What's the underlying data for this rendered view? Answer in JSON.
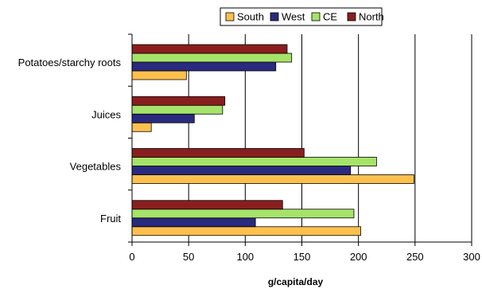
{
  "chart_data": {
    "type": "bar",
    "orientation": "horizontal",
    "categories": [
      "Potatoes/starchy roots",
      "Juices",
      "Vegetables",
      "Fruit"
    ],
    "series": [
      {
        "name": "South",
        "color": "#FFC04D",
        "values": [
          48,
          17,
          249,
          202
        ]
      },
      {
        "name": "West",
        "color": "#2A2A7E",
        "values": [
          127,
          55,
          193,
          109
        ]
      },
      {
        "name": "CE",
        "color": "#A6E36A",
        "values": [
          141,
          80,
          216,
          196
        ]
      },
      {
        "name": "North",
        "color": "#8A1E1E",
        "values": [
          137,
          82,
          152,
          133
        ]
      }
    ],
    "legend_order": [
      "South",
      "West",
      "CE",
      "North"
    ],
    "legend_position": "top",
    "x_ticks": [
      0,
      50,
      100,
      150,
      200,
      250,
      300
    ],
    "xlim": [
      0,
      300
    ],
    "xlabel": "g/capita/day",
    "title": "",
    "ylabel": "",
    "grid": "vertical"
  }
}
